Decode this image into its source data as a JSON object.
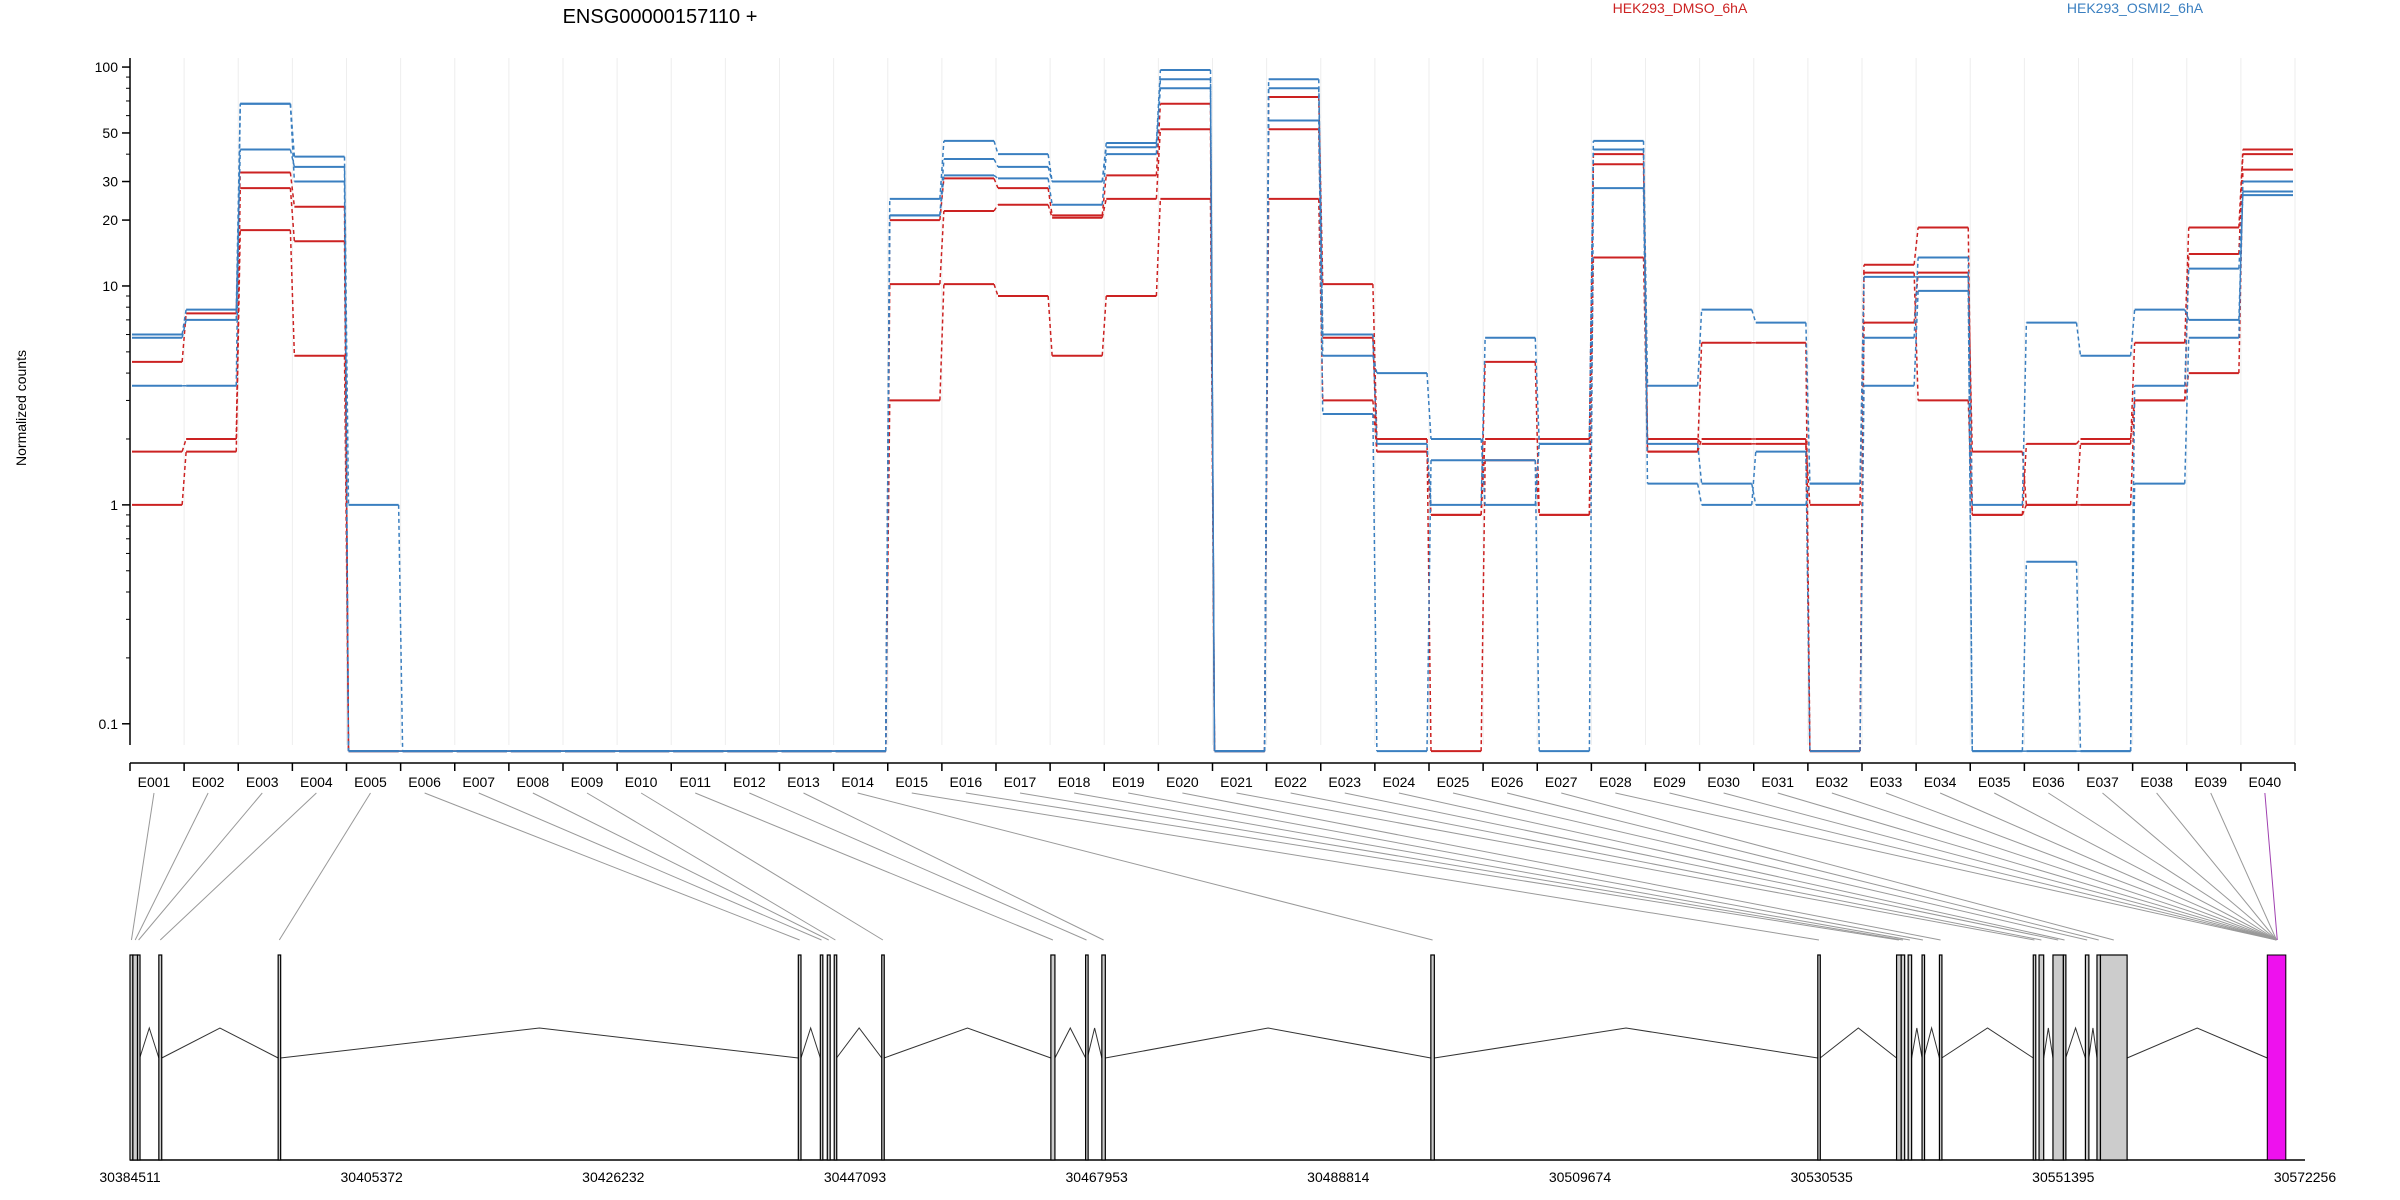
{
  "colors": {
    "dmso": "#cc2222",
    "osmi": "#3a7fc0",
    "highlight": "#ee11ee",
    "exon_fill": "#cccccc",
    "grid": "#eeeeee"
  },
  "chart_data": {
    "type": "line",
    "title": "ENSG00000157110 +",
    "ylabel": "Normalized counts",
    "y_scale": "log",
    "ylim": [
      0.08,
      110
    ],
    "y_ticks": [
      0.1,
      1,
      10,
      20,
      30,
      50,
      100
    ],
    "legend": [
      {
        "name": "HEK293_DMSO_6hA",
        "color": "#cc2222"
      },
      {
        "name": "HEK293_OSMI2_6hA",
        "color": "#3a7fc0"
      }
    ],
    "categories": [
      "E001",
      "E002",
      "E003",
      "E004",
      "E005",
      "E006",
      "E007",
      "E008",
      "E009",
      "E010",
      "E011",
      "E012",
      "E013",
      "E014",
      "E015",
      "E016",
      "E017",
      "E018",
      "E019",
      "E020",
      "E021",
      "E022",
      "E023",
      "E024",
      "E025",
      "E026",
      "E027",
      "E028",
      "E029",
      "E030",
      "E031",
      "E032",
      "E033",
      "E034",
      "E035",
      "E036",
      "E037",
      "E038",
      "E039",
      "E040"
    ],
    "series": [
      {
        "group": "HEK293_DMSO_6hA",
        "values": [
          4.5,
          7.5,
          33,
          23,
          0.075,
          0.075,
          0.075,
          0.075,
          0.075,
          0.075,
          0.075,
          0.075,
          0.075,
          0.075,
          20,
          31,
          28,
          21,
          32,
          68,
          0.075,
          73,
          10.2,
          2.0,
          0.075,
          1.6,
          0.9,
          40,
          2.0,
          1.9,
          1.9,
          1.0,
          12.5,
          18.5,
          0.9,
          1.0,
          1.9,
          5.5,
          18.5,
          42
        ]
      },
      {
        "group": "HEK293_DMSO_6hA",
        "values": [
          1.75,
          2.0,
          28,
          16,
          0.075,
          0.075,
          0.075,
          0.075,
          0.075,
          0.075,
          0.075,
          0.075,
          0.075,
          0.075,
          10.2,
          22,
          23.5,
          20.5,
          25,
          52,
          0.075,
          52,
          5.8,
          1.75,
          0.9,
          2.0,
          2.0,
          36,
          1.75,
          5.5,
          5.5,
          0.075,
          6.8,
          11.5,
          1.75,
          1.0,
          1.0,
          3.0,
          14,
          40
        ]
      },
      {
        "group": "HEK293_DMSO_6hA",
        "values": [
          1.0,
          1.75,
          18,
          4.8,
          0.075,
          0.075,
          0.075,
          0.075,
          0.075,
          0.075,
          0.075,
          0.075,
          0.075,
          0.075,
          3.0,
          10.2,
          9.0,
          4.8,
          9.0,
          25,
          0.075,
          25,
          3.0,
          1.75,
          0.9,
          4.5,
          0.9,
          13.5,
          1.75,
          2.0,
          2.0,
          0.075,
          11.5,
          3.0,
          0.9,
          1.9,
          2.0,
          3.0,
          4.0,
          34
        ]
      },
      {
        "group": "HEK293_OSMI2_6hA",
        "values": [
          6.0,
          7.8,
          68,
          39,
          1.0,
          0.075,
          0.075,
          0.075,
          0.075,
          0.075,
          0.075,
          0.075,
          0.075,
          0.075,
          25,
          46,
          40,
          30,
          45,
          97,
          0.075,
          88,
          6.0,
          1.9,
          1.0,
          5.8,
          1.9,
          46,
          3.5,
          7.8,
          6.8,
          1.25,
          11,
          11,
          1.0,
          6.8,
          4.8,
          7.8,
          7.0,
          27
        ]
      },
      {
        "group": "HEK293_OSMI2_6hA",
        "values": [
          5.8,
          7.0,
          42,
          35,
          0.075,
          0.075,
          0.075,
          0.075,
          0.075,
          0.075,
          0.075,
          0.075,
          0.075,
          0.075,
          21,
          38,
          35,
          30,
          43,
          80,
          0.075,
          80,
          4.8,
          4.0,
          2.0,
          1.0,
          1.9,
          42,
          1.9,
          1.25,
          1.0,
          1.25,
          5.8,
          13.5,
          0.075,
          0.075,
          0.075,
          3.5,
          12,
          26
        ]
      },
      {
        "group": "HEK293_OSMI2_6hA",
        "values": [
          3.5,
          3.5,
          68,
          30,
          0.075,
          0.075,
          0.075,
          0.075,
          0.075,
          0.075,
          0.075,
          0.075,
          0.075,
          0.075,
          21,
          32,
          31,
          23.5,
          40,
          88,
          0.075,
          57,
          2.6,
          0.075,
          1.6,
          1.6,
          0.075,
          28,
          1.25,
          1.0,
          1.75,
          0.075,
          3.5,
          9.5,
          0.075,
          0.55,
          0.075,
          1.25,
          5.8,
          30
        ]
      }
    ]
  },
  "genome_track": {
    "coord_labels": [
      "30384511",
      "30405372",
      "30426232",
      "30447093",
      "30467953",
      "30488814",
      "30509674",
      "30530535",
      "30551395",
      "30572256"
    ],
    "range": [
      30384511,
      30572256
    ],
    "exons": [
      [
        30384511,
        30384760
      ],
      [
        30384760,
        30385160
      ],
      [
        30385160,
        30385350
      ],
      [
        30387000,
        30387250
      ],
      [
        30397300,
        30397500
      ],
      [
        30442200,
        30442430
      ],
      [
        30444100,
        30444300
      ],
      [
        30444700,
        30444950
      ],
      [
        30445300,
        30445500
      ],
      [
        30449400,
        30449600
      ],
      [
        30464000,
        30464350
      ],
      [
        30467000,
        30467150
      ],
      [
        30468400,
        30468700
      ],
      [
        30496800,
        30497100
      ],
      [
        30530200,
        30530400
      ],
      [
        30537000,
        30537400
      ],
      [
        30537400,
        30537700
      ],
      [
        30538000,
        30538300
      ],
      [
        30539200,
        30539350
      ],
      [
        30540700,
        30540900
      ],
      [
        30548800,
        30549000
      ],
      [
        30549300,
        30549700
      ],
      [
        30550500,
        30551400
      ],
      [
        30551400,
        30551600
      ],
      [
        30553300,
        30553600
      ],
      [
        30554300,
        30554600
      ],
      [
        30554600,
        30556900
      ]
    ],
    "highlight_exon": [
      30569000,
      30570600
    ]
  }
}
